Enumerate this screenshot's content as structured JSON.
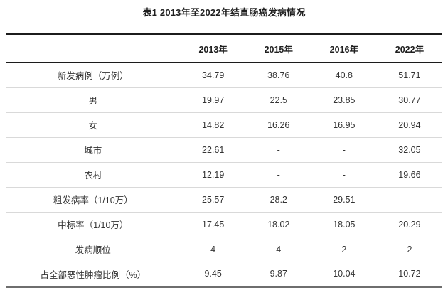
{
  "page": {
    "background_color": "#ffffff",
    "text_color": "#333333"
  },
  "title": "表1 2013年至2022年结直肠癌发病情况",
  "table": {
    "corner_label": "",
    "columns": [
      "2013年",
      "2015年",
      "2016年",
      "2022年"
    ],
    "rows": [
      {
        "label": "新发病例（万例）",
        "values": [
          "34.79",
          "38.76",
          "40.8",
          "51.71"
        ]
      },
      {
        "label": "男",
        "values": [
          "19.97",
          "22.5",
          "23.85",
          "30.77"
        ]
      },
      {
        "label": "女",
        "values": [
          "14.82",
          "16.26",
          "16.95",
          "20.94"
        ]
      },
      {
        "label": "城市",
        "values": [
          "22.61",
          "-",
          "-",
          "32.05"
        ]
      },
      {
        "label": "农村",
        "values": [
          "12.19",
          "-",
          "-",
          "19.66"
        ]
      },
      {
        "label": "粗发病率（1/10万）",
        "values": [
          "25.57",
          "28.2",
          "29.51",
          "-"
        ]
      },
      {
        "label": "中标率（1/10万）",
        "values": [
          "17.45",
          "18.02",
          "18.05",
          "20.29"
        ]
      },
      {
        "label": "发病顺位",
        "values": [
          "4",
          "4",
          "2",
          "2"
        ]
      },
      {
        "label": "占全部恶性肿瘤比例（%）",
        "values": [
          "9.45",
          "9.87",
          "10.04",
          "10.72"
        ]
      }
    ]
  },
  "colors": {
    "heavy_border": "#1c1c1c",
    "row_separator": "#d9d9d9",
    "bottom_border": "#6e6e6e"
  }
}
